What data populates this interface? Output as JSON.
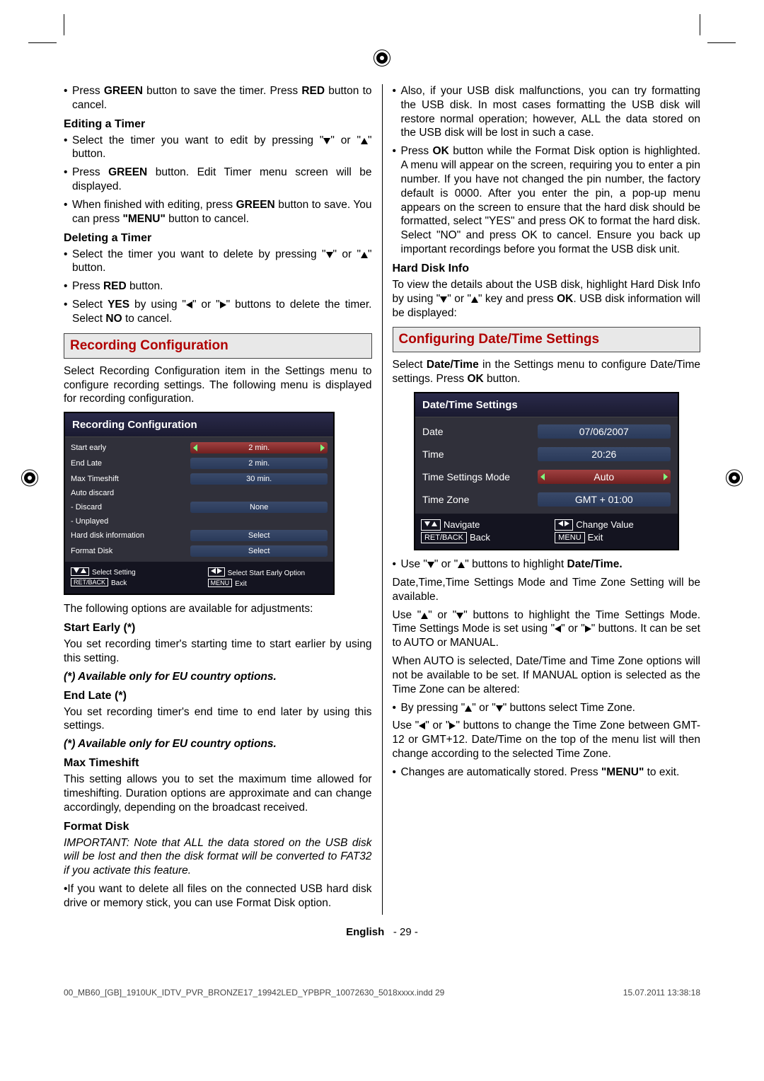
{
  "left": {
    "p1a": "Press ",
    "p1b": "GREEN",
    "p1c": " button to save the timer. Press ",
    "p1d": "RED",
    "p1e": " button to cancel.",
    "h1": "Editing a Timer",
    "l1a": "Select the timer you want to edit by pressing \"",
    "l1b": "\" or \"",
    "l1c": "\" button.",
    "l2a": "Press ",
    "l2b": "GREEN",
    "l2c": " button. Edit Timer menu screen will be displayed.",
    "l3a": "When finished with editing, press ",
    "l3b": "GREEN",
    "l3c": " button to save. You can press ",
    "l3d": "\"MENU\"",
    "l3e": " button to cancel.",
    "h2": "Deleting a Timer",
    "l4a": "Select the timer you want to delete by pressing \"",
    "l4b": "\" or \"",
    "l4c": "\" button.",
    "l5a": "Press ",
    "l5b": "RED",
    "l5c": " button.",
    "l6a": "Select ",
    "l6b": "YES",
    "l6c": " by using \"",
    "l6d": "\" or \"",
    "l6e": "\" buttons to delete the timer. Select ",
    "l6f": "NO",
    "l6g": " to cancel.",
    "band1": "Recording Configuration",
    "p2": "Select Recording Configuration item in the Settings menu to configure recording settings. The following menu is displayed for recording configuration.",
    "osd1": {
      "title": "Recording Configuration",
      "rows": [
        {
          "lab": "Start early",
          "val": "2 min.",
          "sel": true
        },
        {
          "lab": "End Late",
          "val": "2 min."
        },
        {
          "lab": "Max Timeshift",
          "val": "30 min."
        },
        {
          "lab": "Auto discard",
          "plain": true
        },
        {
          "lab": "- Discard",
          "val": "None"
        },
        {
          "lab": "- Unplayed",
          "plain": true
        },
        {
          "lab": "Hard disk information",
          "val": "Select"
        },
        {
          "lab": "Format Disk",
          "val": "Select"
        }
      ],
      "foot_nav1": "Select Setting",
      "foot_nav2": "Back",
      "foot_chg1": "Select Start Early Option",
      "foot_chg2": "Exit",
      "key_menu": "MENU",
      "key_ret": "RET/BACK"
    },
    "p3": "The following options are available for adjustments:",
    "h3": "Start Early (*)",
    "p4": "You set recording timer's starting time to start earlier by using this setting.",
    "note1": "(*) Available only for EU country options.",
    "h4": "End Late (*)",
    "p5": "You set recording timer's end time to end later by using this settings.",
    "note2": "(*) Available only for EU country options.",
    "h5": "Max Timeshift",
    "p6": "This setting allows you to set the maximum time allowed for timeshifting. Duration options are approximate and can change accordingly, depending on the broadcast received.",
    "h6": "Format Disk",
    "p7": "IMPORTANT: Note that ALL the data stored on the USB disk will be lost and then the disk format will be converted to FAT32 if you activate this feature.",
    "p8": "•If you want to delete all files on the connected USB hard disk drive or memory stick, you can use Format Disk option."
  },
  "right": {
    "p1": "Also, if your USB disk malfunctions, you can try formatting the USB disk. In most cases formatting the USB disk will restore normal operation; however, ALL the data stored on the USB disk will be lost in such a case.",
    "p2a": "Press ",
    "p2b": "OK",
    "p2c": " button while the Format Disk option is highlighted. A menu will appear on the screen, requiring you to enter a pin number. If you have not changed the pin number, the factory default is 0000. After you enter the pin, a pop-up menu appears on the screen to ensure that the hard disk should be formatted, select \"YES\" and press OK to format the hard disk. Select \"NO\" and press OK to cancel. Ensure you back up important recordings before you format the USB disk unit.",
    "h1": "Hard Disk Info",
    "p3a": "To view the details about the USB disk, highlight Hard Disk Info by using \"",
    "p3b": "\" or \"",
    "p3c": "\" key and press ",
    "p3d": "OK",
    "p3e": ". USB disk information will be displayed:",
    "band1": "Configuring Date/Time Settings",
    "p4a": "Select ",
    "p4b": "Date/Time",
    "p4c": " in the Settings menu to configure Date/Time settings. Press ",
    "p4d": "OK",
    "p4e": " button.",
    "osd2": {
      "title": "Date/Time Settings",
      "rows": [
        {
          "lab": "Date",
          "val": "07/06/2007"
        },
        {
          "lab": "Time",
          "val": "20:26"
        },
        {
          "lab": "Time Settings Mode",
          "val": "Auto",
          "sel": true
        },
        {
          "lab": "Time Zone",
          "val": "GMT + 01:00"
        }
      ],
      "foot_nav1": "Navigate",
      "foot_nav2": "Back",
      "foot_chg1": "Change Value",
      "foot_chg2": "Exit",
      "key_menu": "MENU",
      "key_ret": "RET/BACK"
    },
    "l1a": "Use \"",
    "l1b": "\" or \"",
    "l1c": "\" buttons to highlight ",
    "l1d": "Date/Time.",
    "p5": "Date,Time,Time Settings Mode and Time Zone Setting will be available.",
    "p6a": "Use \"",
    "p6b": "\" or \"",
    "p6c": "\" buttons to highlight the Time Settings Mode. Time Settings Mode is set using \"",
    "p6d": "\" or \"",
    "p6e": "\" buttons. It can be set to AUTO or MANUAL.",
    "p7": "When AUTO is selected, Date/Time and Time Zone options will not be available to be set. If MANUAL option is selected as the Time Zone can be altered:",
    "l2a": "By pressing \"",
    "l2b": "\" or \"",
    "l2c": "\" buttons select Time Zone.",
    "p8a": "Use \"",
    "p8b": "\" or \"",
    "p8c": "\" buttons to change the Time Zone between GMT-12 or GMT+12. Date/Time on the top of the menu list will then change according to the selected Time Zone.",
    "l3a": "Changes are automatically stored. Press ",
    "l3b": "\"MENU\"",
    "l3c": " to exit."
  },
  "footer": {
    "lang": "English",
    "page": "- 29 -"
  },
  "printmeta": {
    "file": "00_MB60_[GB]_1910UK_IDTV_PVR_BRONZE17_19942LED_YPBPR_10072630_5018xxxx.indd   29",
    "date": "15.07.2011   13:38:18"
  }
}
